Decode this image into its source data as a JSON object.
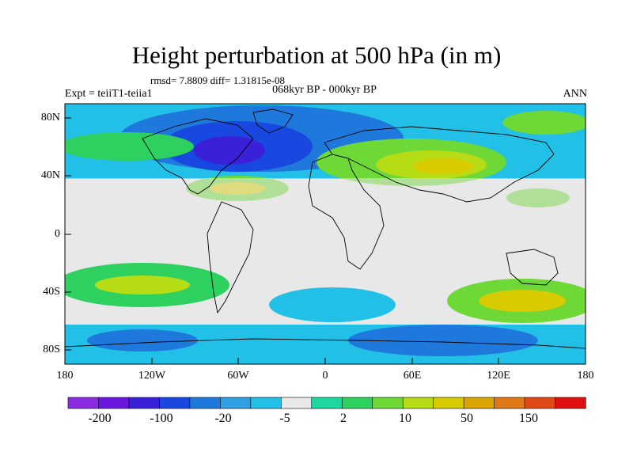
{
  "title": "Height perturbation at 500 hPa (in m)",
  "stats": "rmsd= 7.8809 diff= 1.31815e-08",
  "left_label": "Expt = teiiT1-teiia1",
  "center_label": "068kyr BP - 000kyr BP",
  "right_label": "ANN",
  "map": {
    "projection": "cylindrical-equidistant",
    "lon_range": [
      -180,
      180
    ],
    "lat_range": [
      -90,
      90
    ],
    "x_ticks": [
      "180",
      "120W",
      "60W",
      "0",
      "60E",
      "120E",
      "180"
    ],
    "y_ticks": [
      "80N",
      "40N",
      "0",
      "40S",
      "80S"
    ]
  },
  "colorbar": {
    "labels": [
      "-200",
      "-100",
      "-20",
      "-5",
      "2",
      "10",
      "50",
      "150"
    ],
    "colors": [
      "#8a2be2",
      "#6a18e0",
      "#3a20d8",
      "#1848e0",
      "#1f78dc",
      "#2f9fe2",
      "#22c0e6",
      "#e8e8e8",
      "#1ed6a0",
      "#2ed060",
      "#6ed836",
      "#b6dc16",
      "#d8cc00",
      "#dca400",
      "#e07818",
      "#e04818",
      "#e01010"
    ]
  },
  "legend_colors": {
    "neutral": "#e8e8e8",
    "coastline": "#000000"
  }
}
